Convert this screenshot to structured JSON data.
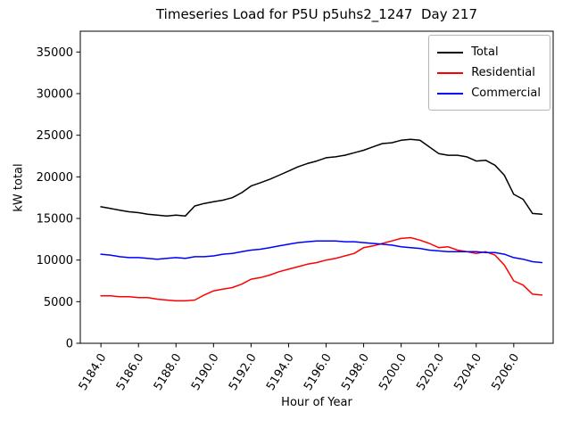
{
  "figure": {
    "title": "Timeseries Load for P5U p5uhs2_1247  Day 217",
    "xlabel": "Hour of Year",
    "ylabel": "kW total"
  },
  "legend": {
    "entries": [
      {
        "label": "Total",
        "color": "#000000"
      },
      {
        "label": "Residential",
        "color": "#ff0000"
      },
      {
        "label": "Commercial",
        "color": "#0000ff"
      }
    ]
  },
  "chart_data": {
    "type": "line",
    "title": "Timeseries Load for P5U p5uhs2_1247  Day 217",
    "xlabel": "Hour of Year",
    "ylabel": "kW total",
    "xlim": [
      5182.9,
      5208.1
    ],
    "ylim": [
      0,
      37500
    ],
    "grid": false,
    "legend_position": "upper right",
    "xticks": [
      5184,
      5186,
      5188,
      5190,
      5192,
      5194,
      5196,
      5198,
      5200,
      5202,
      5204,
      5206
    ],
    "xtick_labels": [
      "5184.0",
      "5186.0",
      "5188.0",
      "5190.0",
      "5192.0",
      "5194.0",
      "5196.0",
      "5198.0",
      "5200.0",
      "5202.0",
      "5204.0",
      "5206.0"
    ],
    "yticks": [
      0,
      5000,
      10000,
      15000,
      20000,
      25000,
      30000,
      35000
    ],
    "ytick_labels": [
      "0",
      "5000",
      "10000",
      "15000",
      "20000",
      "25000",
      "30000",
      "35000"
    ],
    "x": [
      5184.0,
      5184.5,
      5185.0,
      5185.5,
      5186.0,
      5186.5,
      5187.0,
      5187.5,
      5188.0,
      5188.5,
      5189.0,
      5189.5,
      5190.0,
      5190.5,
      5191.0,
      5191.5,
      5192.0,
      5192.5,
      5193.0,
      5193.5,
      5194.0,
      5194.5,
      5195.0,
      5195.5,
      5196.0,
      5196.5,
      5197.0,
      5197.5,
      5198.0,
      5198.5,
      5199.0,
      5199.5,
      5200.0,
      5200.5,
      5201.0,
      5201.5,
      5202.0,
      5202.5,
      5203.0,
      5203.5,
      5204.0,
      5204.5,
      5205.0,
      5205.5,
      5206.0,
      5206.5,
      5207.0,
      5207.5
    ],
    "series": [
      {
        "name": "Total",
        "color": "#000000",
        "values": [
          16400,
          16200,
          16000,
          15800,
          15700,
          15500,
          15400,
          15300,
          15400,
          15300,
          16500,
          16800,
          17000,
          17200,
          17500,
          18100,
          18900,
          19300,
          19700,
          20200,
          20700,
          21200,
          21600,
          21900,
          22300,
          22400,
          22600,
          22900,
          23200,
          23600,
          24000,
          24100,
          24400,
          24500,
          24400,
          23600,
          22800,
          22600,
          22600,
          22400,
          21900,
          22000,
          21400,
          20200,
          17900,
          17300,
          15600,
          15500
        ]
      },
      {
        "name": "Residential",
        "color": "#ff0000",
        "values": [
          5700,
          5700,
          5600,
          5600,
          5500,
          5500,
          5300,
          5200,
          5100,
          5100,
          5200,
          5800,
          6300,
          6500,
          6700,
          7100,
          7700,
          7900,
          8200,
          8600,
          8900,
          9200,
          9500,
          9700,
          10000,
          10200,
          10500,
          10800,
          11500,
          11700,
          12000,
          12300,
          12600,
          12700,
          12400,
          12000,
          11500,
          11600,
          11200,
          11000,
          10800,
          11000,
          10600,
          9400,
          7500,
          7000,
          5900,
          5800
        ]
      },
      {
        "name": "Commercial",
        "color": "#0000ff",
        "values": [
          10700,
          10600,
          10400,
          10300,
          10300,
          10200,
          10100,
          10200,
          10300,
          10200,
          10400,
          10400,
          10500,
          10700,
          10800,
          11000,
          11200,
          11300,
          11500,
          11700,
          11900,
          12100,
          12200,
          12300,
          12300,
          12300,
          12200,
          12200,
          12100,
          12000,
          11900,
          11800,
          11600,
          11500,
          11400,
          11200,
          11100,
          11000,
          11000,
          11000,
          11000,
          10900,
          10900,
          10700,
          10300,
          10100,
          9800,
          9700
        ]
      }
    ]
  }
}
